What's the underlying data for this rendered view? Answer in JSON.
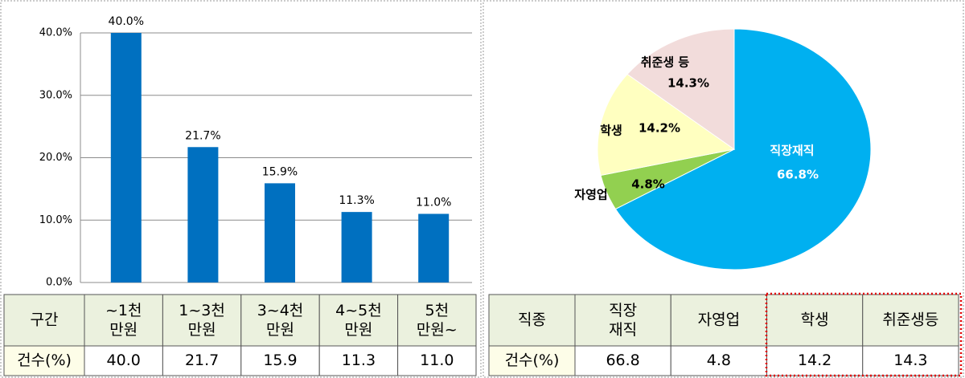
{
  "chart_data": [
    {
      "type": "bar",
      "categories": [
        "~1천 만원",
        "1~3천 만원",
        "3~4천 만원",
        "4~5천 만원",
        "5천 만원~"
      ],
      "values": [
        40.0,
        21.7,
        15.9,
        11.3,
        11.0
      ],
      "value_labels": [
        "40.0%",
        "21.7%",
        "15.9%",
        "11.3%",
        "11.0%"
      ],
      "color": "#0070c0",
      "ylim": [
        0,
        40
      ],
      "yticks": [
        {
          "value": 0,
          "label": "0.0%"
        },
        {
          "value": 10,
          "label": "10.0%"
        },
        {
          "value": 20,
          "label": "20.0%"
        },
        {
          "value": 30,
          "label": "30.0%"
        },
        {
          "value": 40,
          "label": "40.0%"
        }
      ],
      "grid": true
    },
    {
      "type": "pie",
      "categories": [
        "직장재직",
        "자영업",
        "학생",
        "취준생 등"
      ],
      "values": [
        66.8,
        4.8,
        14.2,
        14.3
      ],
      "value_labels": [
        "66.8%",
        "4.8%",
        "14.2%",
        "14.3%"
      ],
      "colors": [
        "#00b0f0",
        "#92d050",
        "#ffffc0",
        "#f2dcdb"
      ]
    }
  ],
  "tables": [
    {
      "header_label": "구간",
      "row_label": "건수(%)",
      "row": [
        "40.0",
        "21.7",
        "15.9",
        "11.3",
        "11.0"
      ]
    },
    {
      "header_label": "직종",
      "header": [
        "직장 재직",
        "자영업",
        "학생",
        "취준생등"
      ],
      "row_label": "건수(%)",
      "row": [
        "66.8",
        "4.8",
        "14.2",
        "14.3"
      ]
    }
  ]
}
